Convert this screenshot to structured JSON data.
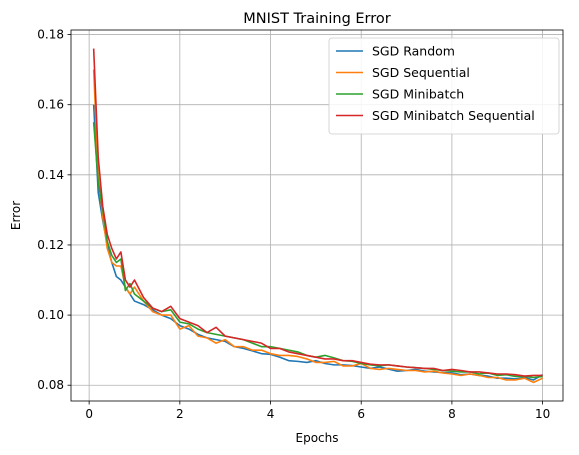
{
  "chart_data": {
    "type": "line",
    "title": "MNIST Training Error",
    "xlabel": "Epochs",
    "ylabel": "Error",
    "xlim": [
      -0.4,
      10.45
    ],
    "ylim": [
      0.0755,
      0.1813
    ],
    "xticks": [
      0,
      2,
      4,
      6,
      8,
      10
    ],
    "xtick_labels": [
      "0",
      "2",
      "4",
      "6",
      "8",
      "10"
    ],
    "yticks": [
      0.08,
      0.1,
      0.12,
      0.14,
      0.16,
      0.18
    ],
    "ytick_labels": [
      "0.08",
      "0.10",
      "0.12",
      "0.14",
      "0.16",
      "0.18"
    ],
    "grid": true,
    "legend_position": "top-right",
    "series": [
      {
        "name": "SGD Random",
        "color": "#1f77b4",
        "x": [
          0.1,
          0.2,
          0.3,
          0.4,
          0.5,
          0.6,
          0.7,
          0.8,
          0.9,
          1.0,
          1.2,
          1.4,
          1.6,
          1.8,
          2.0,
          2.2,
          2.4,
          2.6,
          2.8,
          3.0,
          3.2,
          3.4,
          3.6,
          3.8,
          4.0,
          4.2,
          4.4,
          4.6,
          4.8,
          5.0,
          5.2,
          5.4,
          5.6,
          5.8,
          6.0,
          6.2,
          6.4,
          6.6,
          6.8,
          7.0,
          7.2,
          7.4,
          7.6,
          7.8,
          8.0,
          8.2,
          8.4,
          8.6,
          8.8,
          9.0,
          9.2,
          9.4,
          9.6,
          9.8,
          10.0
        ],
        "y": [
          0.16,
          0.135,
          0.127,
          0.12,
          0.115,
          0.111,
          0.11,
          0.108,
          0.106,
          0.104,
          0.103,
          0.1015,
          0.1,
          0.099,
          0.097,
          0.096,
          0.0945,
          0.0935,
          0.093,
          0.0925,
          0.091,
          0.0905,
          0.0898,
          0.089,
          0.0888,
          0.088,
          0.087,
          0.0868,
          0.0865,
          0.087,
          0.0862,
          0.0858,
          0.0858,
          0.0856,
          0.0852,
          0.0848,
          0.0852,
          0.0846,
          0.084,
          0.0842,
          0.0845,
          0.084,
          0.0838,
          0.0836,
          0.0835,
          0.083,
          0.0832,
          0.0828,
          0.0826,
          0.082,
          0.082,
          0.0818,
          0.0822,
          0.0815,
          0.083
        ]
      },
      {
        "name": "SGD Sequential",
        "color": "#ff7f0e",
        "x": [
          0.1,
          0.2,
          0.3,
          0.4,
          0.5,
          0.6,
          0.7,
          0.8,
          0.9,
          1.0,
          1.2,
          1.4,
          1.6,
          1.8,
          2.0,
          2.2,
          2.4,
          2.6,
          2.8,
          3.0,
          3.2,
          3.4,
          3.6,
          3.8,
          4.0,
          4.2,
          4.4,
          4.6,
          4.8,
          5.0,
          5.2,
          5.4,
          5.6,
          5.8,
          6.0,
          6.2,
          6.4,
          6.6,
          6.8,
          7.0,
          7.2,
          7.4,
          7.6,
          7.8,
          8.0,
          8.2,
          8.4,
          8.6,
          8.8,
          9.0,
          9.2,
          9.4,
          9.6,
          9.8,
          10.0
        ],
        "y": [
          0.17,
          0.14,
          0.128,
          0.119,
          0.115,
          0.114,
          0.114,
          0.108,
          0.106,
          0.108,
          0.104,
          0.101,
          0.1,
          0.1,
          0.096,
          0.097,
          0.094,
          0.0935,
          0.092,
          0.093,
          0.091,
          0.091,
          0.09,
          0.09,
          0.089,
          0.0885,
          0.0885,
          0.0882,
          0.0875,
          0.0865,
          0.0865,
          0.0868,
          0.0855,
          0.0855,
          0.0862,
          0.0848,
          0.0845,
          0.0848,
          0.0845,
          0.0842,
          0.0842,
          0.0838,
          0.084,
          0.0835,
          0.0832,
          0.0828,
          0.0832,
          0.0828,
          0.0822,
          0.0822,
          0.0815,
          0.0815,
          0.082,
          0.0808,
          0.082
        ]
      },
      {
        "name": "SGD Minibatch",
        "color": "#2ca02c",
        "x": [
          0.1,
          0.2,
          0.3,
          0.4,
          0.5,
          0.6,
          0.7,
          0.8,
          0.9,
          1.0,
          1.2,
          1.4,
          1.6,
          1.8,
          2.0,
          2.2,
          2.4,
          2.6,
          2.8,
          3.0,
          3.2,
          3.4,
          3.6,
          3.8,
          4.0,
          4.2,
          4.4,
          4.6,
          4.8,
          5.0,
          5.2,
          5.4,
          5.6,
          5.8,
          6.0,
          6.2,
          6.4,
          6.6,
          6.8,
          7.0,
          7.2,
          7.4,
          7.6,
          7.8,
          8.0,
          8.2,
          8.4,
          8.6,
          8.8,
          9.0,
          9.2,
          9.4,
          9.6,
          9.8,
          10.0
        ],
        "y": [
          0.155,
          0.138,
          0.13,
          0.121,
          0.117,
          0.115,
          0.116,
          0.107,
          0.109,
          0.106,
          0.104,
          0.102,
          0.101,
          0.1015,
          0.098,
          0.0975,
          0.096,
          0.095,
          0.0945,
          0.094,
          0.0935,
          0.093,
          0.092,
          0.091,
          0.091,
          0.0905,
          0.09,
          0.0895,
          0.0885,
          0.088,
          0.0885,
          0.0878,
          0.087,
          0.0868,
          0.0862,
          0.0858,
          0.0855,
          0.0858,
          0.0855,
          0.0852,
          0.085,
          0.0848,
          0.0845,
          0.0842,
          0.084,
          0.0838,
          0.0838,
          0.0832,
          0.0835,
          0.0828,
          0.083,
          0.0825,
          0.0825,
          0.0822,
          0.0825
        ]
      },
      {
        "name": "SGD Minibatch Sequential",
        "color": "#d62728",
        "x": [
          0.1,
          0.2,
          0.3,
          0.4,
          0.5,
          0.6,
          0.7,
          0.8,
          0.9,
          1.0,
          1.2,
          1.4,
          1.6,
          1.8,
          2.0,
          2.2,
          2.4,
          2.6,
          2.8,
          3.0,
          3.2,
          3.4,
          3.6,
          3.8,
          4.0,
          4.2,
          4.4,
          4.6,
          4.8,
          5.0,
          5.2,
          5.4,
          5.6,
          5.8,
          6.0,
          6.2,
          6.4,
          6.6,
          6.8,
          7.0,
          7.2,
          7.4,
          7.6,
          7.8,
          8.0,
          8.2,
          8.4,
          8.6,
          8.8,
          9.0,
          9.2,
          9.4,
          9.6,
          9.8,
          10.0
        ],
        "y": [
          0.176,
          0.145,
          0.131,
          0.123,
          0.119,
          0.116,
          0.118,
          0.11,
          0.108,
          0.11,
          0.105,
          0.102,
          0.101,
          0.1025,
          0.099,
          0.098,
          0.097,
          0.095,
          0.0965,
          0.094,
          0.0935,
          0.093,
          0.0925,
          0.092,
          0.0905,
          0.0905,
          0.0895,
          0.089,
          0.0885,
          0.088,
          0.0875,
          0.0875,
          0.087,
          0.087,
          0.0865,
          0.086,
          0.0858,
          0.0858,
          0.0855,
          0.0852,
          0.085,
          0.0848,
          0.0848,
          0.0842,
          0.0845,
          0.0842,
          0.0838,
          0.0838,
          0.0835,
          0.0832,
          0.0832,
          0.083,
          0.0826,
          0.0828,
          0.0828
        ]
      }
    ]
  }
}
